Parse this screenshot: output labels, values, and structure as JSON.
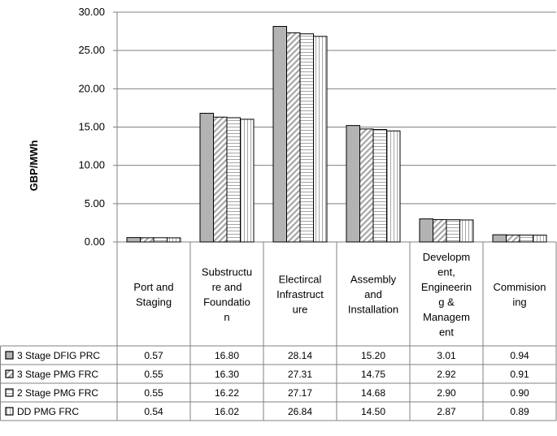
{
  "chart_data": {
    "type": "bar",
    "title": "",
    "xlabel": "",
    "ylabel": "GBP/MWh",
    "ylim": [
      0,
      30
    ],
    "yticks": [
      "0.00",
      "5.00",
      "10.00",
      "15.00",
      "20.00",
      "25.00",
      "30.00"
    ],
    "grid": true,
    "legend": "data-table",
    "categories": [
      [
        "Port and",
        "Staging"
      ],
      [
        "Substructu",
        "re and",
        "Foundatio",
        "n"
      ],
      [
        "Electircal",
        "Infrastruct",
        "ure"
      ],
      [
        "Assembly",
        "and",
        "Installation"
      ],
      [
        "Developm",
        "ent,",
        "Engineerin",
        "g &",
        "Managem",
        "ent"
      ],
      [
        "Commision",
        "ing"
      ]
    ],
    "series": [
      {
        "name": "3 Stage DFIG PRC",
        "pattern": "solid-gray",
        "values": [
          0.57,
          16.8,
          28.14,
          15.2,
          3.01,
          0.94
        ],
        "labels": [
          "0.57",
          "16.80",
          "28.14",
          "15.20",
          "3.01",
          "0.94"
        ]
      },
      {
        "name": "3 Stage PMG FRC",
        "pattern": "diagonal-hatch",
        "values": [
          0.55,
          16.3,
          27.31,
          14.75,
          2.92,
          0.91
        ],
        "labels": [
          "0.55",
          "16.30",
          "27.31",
          "14.75",
          "2.92",
          "0.91"
        ]
      },
      {
        "name": "2 Stage PMG FRC",
        "pattern": "horizontal-hatch",
        "values": [
          0.55,
          16.22,
          27.17,
          14.68,
          2.9,
          0.9
        ],
        "labels": [
          "0.55",
          "16.22",
          "27.17",
          "14.68",
          "2.90",
          "0.90"
        ]
      },
      {
        "name": "DD PMG FRC",
        "pattern": "vertical-hatch",
        "values": [
          0.54,
          16.02,
          26.84,
          14.5,
          2.87,
          0.89
        ],
        "labels": [
          "0.54",
          "16.02",
          "26.84",
          "14.50",
          "2.87",
          "0.89"
        ]
      }
    ],
    "colors": {
      "bar_stroke": "#000000",
      "solid_fill": "#b3b3b3",
      "gridline": "#808080",
      "hatch": "#a6a6a6"
    }
  }
}
